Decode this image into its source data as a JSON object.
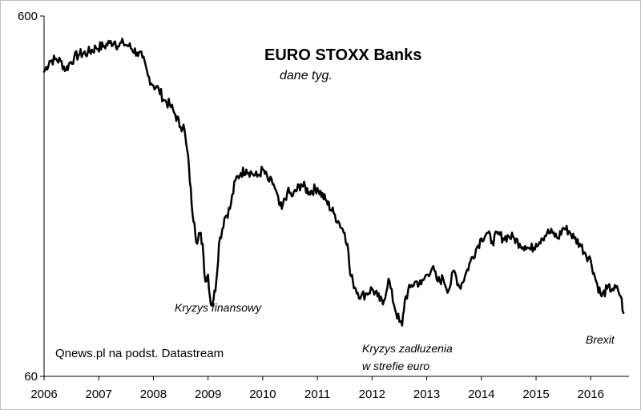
{
  "chart_data": {
    "type": "line",
    "title": "EURO STOXX Banks",
    "subtitle": "dane tyg.",
    "source": "Qnews.pl na podst. Datastream",
    "xlabel": "",
    "ylabel": "",
    "y_scale": "log",
    "ylim": [
      60,
      600
    ],
    "xlim": [
      2006,
      2016.7
    ],
    "y_ticks": [
      "600",
      "60"
    ],
    "x_ticks": [
      "2006",
      "2007",
      "2008",
      "2009",
      "2010",
      "2011",
      "2012",
      "2013",
      "2014",
      "2015",
      "2016"
    ],
    "grid": false,
    "series": [
      {
        "name": "",
        "color": "#000000",
        "x": [
          2006.0,
          2006.1,
          2006.2,
          2006.3,
          2006.4,
          2006.45,
          2006.55,
          2006.65,
          2006.8,
          2006.95,
          2007.1,
          2007.2,
          2007.3,
          2007.35,
          2007.45,
          2007.55,
          2007.7,
          2007.8,
          2007.9,
          2008.0,
          2008.1,
          2008.2,
          2008.3,
          2008.4,
          2008.5,
          2008.55,
          2008.6,
          2008.65,
          2008.7,
          2008.75,
          2008.8,
          2008.85,
          2008.9,
          2008.95,
          2009.0,
          2009.05,
          2009.1,
          2009.15,
          2009.2,
          2009.3,
          2009.4,
          2009.5,
          2009.6,
          2009.7,
          2009.8,
          2009.9,
          2010.0,
          2010.1,
          2010.2,
          2010.3,
          2010.35,
          2010.45,
          2010.55,
          2010.7,
          2010.85,
          2011.0,
          2011.15,
          2011.3,
          2011.4,
          2011.5,
          2011.55,
          2011.6,
          2011.65,
          2011.7,
          2011.8,
          2011.9,
          2012.0,
          2012.1,
          2012.2,
          2012.3,
          2012.4,
          2012.5,
          2012.55,
          2012.6,
          2012.7,
          2012.8,
          2012.9,
          2013.0,
          2013.1,
          2013.2,
          2013.3,
          2013.4,
          2013.5,
          2013.6,
          2013.7,
          2013.8,
          2013.9,
          2014.0,
          2014.1,
          2014.2,
          2014.3,
          2014.4,
          2014.5,
          2014.6,
          2014.7,
          2014.8,
          2014.9,
          2015.0,
          2015.1,
          2015.2,
          2015.3,
          2015.4,
          2015.5,
          2015.6,
          2015.7,
          2015.8,
          2015.9,
          2016.0,
          2016.1,
          2016.2,
          2016.3,
          2016.4,
          2016.5,
          2016.55,
          2016.6
        ],
        "values": [
          420,
          450,
          455,
          450,
          425,
          440,
          460,
          470,
          475,
          490,
          495,
          505,
          510,
          495,
          505,
          495,
          475,
          460,
          410,
          385,
          375,
          350,
          340,
          320,
          295,
          300,
          265,
          230,
          180,
          160,
          140,
          150,
          140,
          110,
          115,
          95,
          98,
          110,
          140,
          165,
          175,
          210,
          220,
          225,
          220,
          215,
          225,
          210,
          205,
          180,
          175,
          195,
          190,
          205,
          195,
          200,
          185,
          170,
          160,
          150,
          140,
          115,
          110,
          105,
          100,
          102,
          105,
          100,
          95,
          112,
          95,
          85,
          83,
          98,
          106,
          110,
          108,
          115,
          120,
          110,
          112,
          104,
          118,
          106,
          114,
          125,
          135,
          145,
          150,
          142,
          149,
          145,
          147,
          145,
          140,
          138,
          135,
          140,
          145,
          150,
          150,
          145,
          155,
          152,
          145,
          140,
          132,
          126,
          110,
          100,
          105,
          105,
          104,
          100,
          90
        ]
      }
    ],
    "annotations": [
      {
        "text": "Kryzys finansowy",
        "x": 2009.1,
        "y": 95
      },
      {
        "text": "Kryzys zadłużenia",
        "x": 2012.5,
        "y": 83
      },
      {
        "text": "w strefie euro",
        "x": 2012.5,
        "y": 83
      },
      {
        "text": "Brexit",
        "x": 2016.6,
        "y": 90
      }
    ]
  }
}
